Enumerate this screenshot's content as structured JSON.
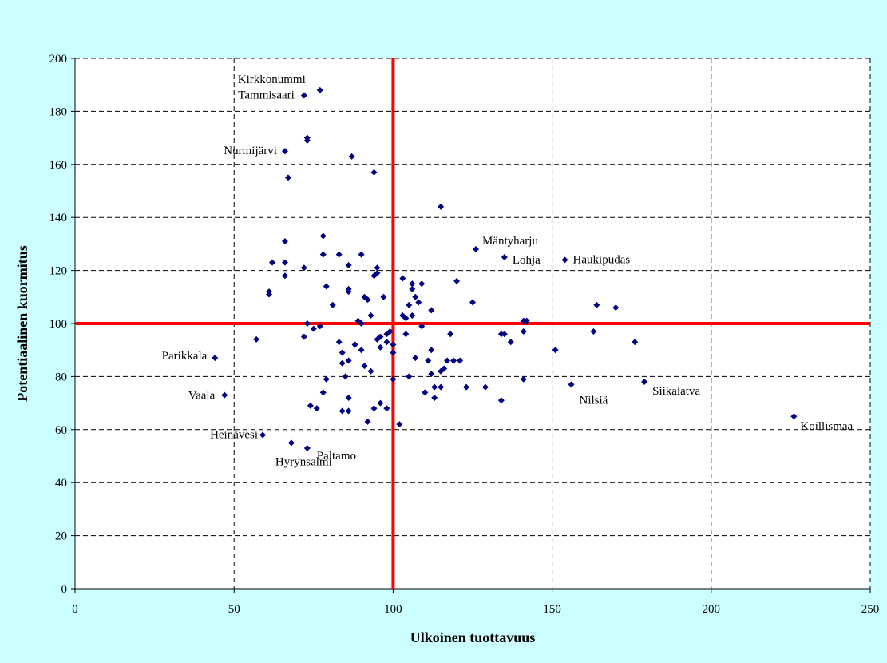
{
  "colors": {
    "background": "#ccffff",
    "plot_area": "#ffffff",
    "marker": "#000080",
    "reference_line": "#ff0000",
    "grid": "#000000"
  },
  "chart_data": {
    "type": "scatter",
    "xlabel": "Ulkoinen tuottavuus",
    "ylabel": "Potentiaalinen kuormitus",
    "xlim": [
      0,
      250
    ],
    "ylim": [
      0,
      200
    ],
    "xticks": [
      0,
      50,
      100,
      150,
      200,
      250
    ],
    "yticks": [
      0,
      20,
      40,
      60,
      80,
      100,
      120,
      140,
      160,
      180,
      200
    ],
    "grid": true,
    "legend": "none",
    "reference_lines": {
      "x": 100,
      "y": 100
    },
    "labeled_points": [
      {
        "label": "Kirkkonummi",
        "x": 77,
        "y": 188
      },
      {
        "label": "Tammisaari",
        "x": 72,
        "y": 186
      },
      {
        "label": "Nurmijärvi",
        "x": 66,
        "y": 165
      },
      {
        "label": "Mäntyharju",
        "x": 126,
        "y": 128
      },
      {
        "label": "Lohja",
        "x": 135,
        "y": 125
      },
      {
        "label": "Haukipudas",
        "x": 154,
        "y": 124
      },
      {
        "label": "Parikkala",
        "x": 44,
        "y": 87
      },
      {
        "label": "Vaala",
        "x": 47,
        "y": 73
      },
      {
        "label": "Nilsiä",
        "x": 156,
        "y": 77
      },
      {
        "label": "Siikalatva",
        "x": 179,
        "y": 78
      },
      {
        "label": "Koillismaa",
        "x": 226,
        "y": 65
      },
      {
        "label": "Heinävesi",
        "x": 59,
        "y": 58
      },
      {
        "label": "Paltamo",
        "x": 73,
        "y": 53
      },
      {
        "label": "Hyrynsalmi",
        "x": 68,
        "y": 55
      }
    ],
    "points": [
      [
        73,
        169
      ],
      [
        73,
        170
      ],
      [
        87,
        163
      ],
      [
        94,
        157
      ],
      [
        67,
        155
      ],
      [
        115,
        144
      ],
      [
        78,
        133
      ],
      [
        66,
        131
      ],
      [
        62,
        123
      ],
      [
        66,
        123
      ],
      [
        72,
        121
      ],
      [
        86,
        122
      ],
      [
        90,
        126
      ],
      [
        83,
        126
      ],
      [
        78,
        126
      ],
      [
        95,
        121
      ],
      [
        95,
        119
      ],
      [
        94,
        118
      ],
      [
        61,
        112
      ],
      [
        61,
        111
      ],
      [
        66,
        118
      ],
      [
        79,
        114
      ],
      [
        86,
        113
      ],
      [
        86,
        112
      ],
      [
        97,
        110
      ],
      [
        91,
        110
      ],
      [
        92,
        109
      ],
      [
        81,
        107
      ],
      [
        103,
        117
      ],
      [
        106,
        115
      ],
      [
        106,
        113
      ],
      [
        109,
        115
      ],
      [
        107,
        110
      ],
      [
        108,
        108
      ],
      [
        105,
        107
      ],
      [
        112,
        105
      ],
      [
        120,
        116
      ],
      [
        125,
        108
      ],
      [
        103,
        103
      ],
      [
        104,
        102
      ],
      [
        106,
        103
      ],
      [
        99,
        97
      ],
      [
        98,
        96
      ],
      [
        96,
        95
      ],
      [
        95,
        94
      ],
      [
        73,
        100
      ],
      [
        75,
        98
      ],
      [
        77,
        99
      ],
      [
        89,
        101
      ],
      [
        90,
        100
      ],
      [
        57,
        94
      ],
      [
        72,
        95
      ],
      [
        93,
        103
      ],
      [
        83,
        93
      ],
      [
        84,
        89
      ],
      [
        86,
        86
      ],
      [
        88,
        92
      ],
      [
        90,
        90
      ],
      [
        91,
        84
      ],
      [
        93,
        82
      ],
      [
        96,
        91
      ],
      [
        98,
        93
      ],
      [
        100,
        92
      ],
      [
        100,
        89
      ],
      [
        104,
        96
      ],
      [
        109,
        99
      ],
      [
        111,
        86
      ],
      [
        112,
        90
      ],
      [
        115,
        82
      ],
      [
        116,
        83
      ],
      [
        117,
        86
      ],
      [
        118,
        96
      ],
      [
        119,
        86
      ],
      [
        121,
        86
      ],
      [
        110,
        74
      ],
      [
        113,
        76
      ],
      [
        115,
        76
      ],
      [
        112,
        81
      ],
      [
        113,
        72
      ],
      [
        105,
        80
      ],
      [
        102,
        62
      ],
      [
        98,
        68
      ],
      [
        100,
        79
      ],
      [
        96,
        70
      ],
      [
        94,
        68
      ],
      [
        92,
        63
      ],
      [
        86,
        72
      ],
      [
        86,
        67
      ],
      [
        84,
        67
      ],
      [
        84,
        85
      ],
      [
        85,
        80
      ],
      [
        79,
        79
      ],
      [
        78,
        74
      ],
      [
        74,
        69
      ],
      [
        76,
        68
      ],
      [
        107,
        87
      ],
      [
        134,
        96
      ],
      [
        135,
        96
      ],
      [
        137,
        93
      ],
      [
        134,
        71
      ],
      [
        129,
        76
      ],
      [
        123,
        76
      ],
      [
        141,
        101
      ],
      [
        142,
        101
      ],
      [
        141,
        97
      ],
      [
        141,
        79
      ],
      [
        151,
        90
      ],
      [
        163,
        97
      ],
      [
        164,
        107
      ],
      [
        170,
        106
      ],
      [
        176,
        93
      ]
    ]
  }
}
